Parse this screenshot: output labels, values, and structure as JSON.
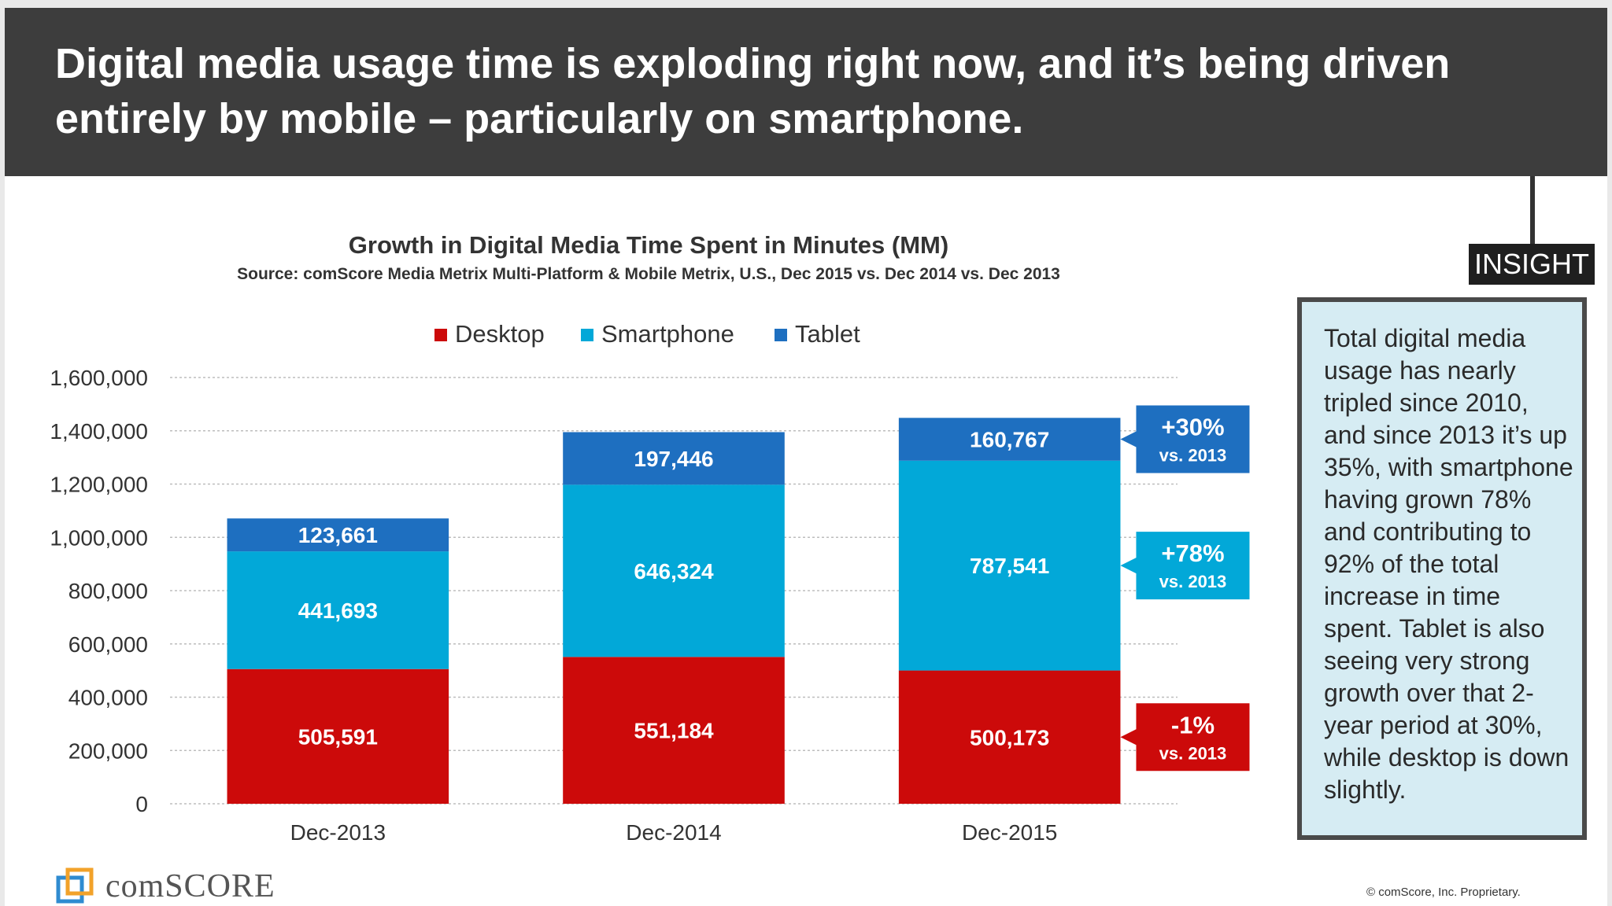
{
  "header": {
    "title": "Digital media usage time is exploding right now, and it’s being driven entirely by mobile – particularly on smartphone."
  },
  "insight": {
    "tag": "INSIGHT",
    "text": "Total digital media usage has nearly tripled since 2010, and since 2013 it’s up 35%, with smartphone having grown 78% and contributing to 92% of the total increase in time spent. Tablet is also seeing very strong growth over that 2-year period at 30%, while desktop is down slightly."
  },
  "footer": {
    "logo_text": "comSCORE",
    "copyright": "© comScore, Inc. Proprietary."
  },
  "chart_data": {
    "type": "bar",
    "stacked": true,
    "title": "Growth in Digital Media Time Spent in Minutes (MM)",
    "subtitle": "Source: comScore Media Metrix Multi-Platform & Mobile Metrix, U.S., Dec 2015 vs. Dec 2014 vs. Dec 2013",
    "categories": [
      "Dec-2013",
      "Dec-2014",
      "Dec-2015"
    ],
    "series": [
      {
        "name": "Desktop",
        "color": "#cc0a0a",
        "values": [
          505591,
          551184,
          500173
        ],
        "labels": [
          "505,591",
          "551,184",
          "500,173"
        ]
      },
      {
        "name": "Smartphone",
        "color": "#02a8d8",
        "values": [
          441693,
          646324,
          787541
        ],
        "labels": [
          "441,693",
          "646,324",
          "787,541"
        ]
      },
      {
        "name": "Tablet",
        "color": "#1e6fc0",
        "values": [
          123661,
          197446,
          160767
        ],
        "labels": [
          "123,661",
          "197,446",
          "160,767"
        ]
      }
    ],
    "ylim": [
      0,
      1600000
    ],
    "yticks": [
      0,
      200000,
      400000,
      600000,
      800000,
      1000000,
      1200000,
      1400000,
      1600000
    ],
    "ytick_labels": [
      "0",
      "200,000",
      "400,000",
      "600,000",
      "800,000",
      "1,000,000",
      "1,200,000",
      "1,400,000",
      "1,600,000"
    ],
    "grid": true,
    "legend_position": "top",
    "annotations": [
      {
        "series": "Tablet",
        "line1": "+30%",
        "line2": "vs. 2013"
      },
      {
        "series": "Smartphone",
        "line1": "+78%",
        "line2": "vs. 2013"
      },
      {
        "series": "Desktop",
        "line1": "-1%",
        "line2": "vs. 2013"
      }
    ]
  }
}
